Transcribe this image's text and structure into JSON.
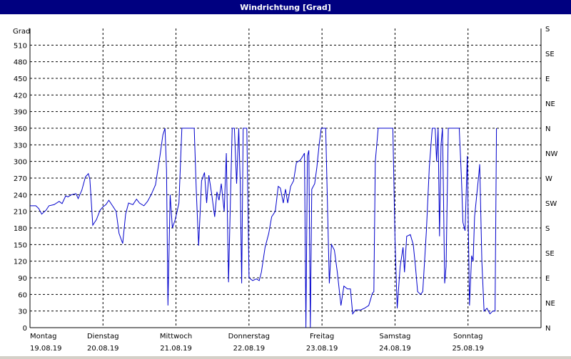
{
  "window": {
    "title": "Windrichtung [Grad]"
  },
  "chart_data": {
    "type": "line",
    "title": "Windrichtung [Grad]",
    "ylabel": "Grad",
    "ylim": [
      0,
      540
    ],
    "y_ticks": [
      0,
      30,
      60,
      90,
      120,
      150,
      180,
      210,
      240,
      270,
      300,
      330,
      360,
      390,
      420,
      450,
      480,
      510
    ],
    "right_axis_labels": [
      "N",
      "NE",
      "E",
      "SE",
      "S",
      "SW",
      "W",
      "NW",
      "N",
      "NE",
      "E",
      "SE",
      "S"
    ],
    "x_range_days": [
      0,
      7
    ],
    "x_ticks": [
      {
        "day": "Montag",
        "date": "19.08.19"
      },
      {
        "day": "Dienstag",
        "date": "20.08.19"
      },
      {
        "day": "Mittwoch",
        "date": "21.08.19"
      },
      {
        "day": "Donnerstag",
        "date": "22.08.19"
      },
      {
        "day": "Freitag",
        "date": "23.08.19"
      },
      {
        "day": "Samstag",
        "date": "24.08.19"
      },
      {
        "day": "Sonntag",
        "date": "25.08.19"
      }
    ],
    "grid": true,
    "color": "#0000cc",
    "series": [
      {
        "points": [
          [
            0.0,
            220
          ],
          [
            0.08,
            220
          ],
          [
            0.12,
            215
          ],
          [
            0.16,
            205
          ],
          [
            0.22,
            212
          ],
          [
            0.26,
            220
          ],
          [
            0.33,
            222
          ],
          [
            0.4,
            228
          ],
          [
            0.44,
            224
          ],
          [
            0.49,
            238
          ],
          [
            0.52,
            236
          ],
          [
            0.57,
            240
          ],
          [
            0.63,
            242
          ],
          [
            0.66,
            233
          ],
          [
            0.71,
            248
          ],
          [
            0.76,
            272
          ],
          [
            0.8,
            278
          ],
          [
            0.82,
            268
          ],
          [
            0.86,
            185
          ],
          [
            0.91,
            195
          ],
          [
            0.96,
            212
          ],
          [
            1.0,
            218
          ],
          [
            1.04,
            222
          ],
          [
            1.08,
            230
          ],
          [
            1.14,
            218
          ],
          [
            1.18,
            210
          ],
          [
            1.22,
            170
          ],
          [
            1.27,
            152
          ],
          [
            1.31,
            205
          ],
          [
            1.35,
            225
          ],
          [
            1.41,
            222
          ],
          [
            1.46,
            232
          ],
          [
            1.5,
            225
          ],
          [
            1.56,
            220
          ],
          [
            1.61,
            228
          ],
          [
            1.66,
            240
          ],
          [
            1.72,
            258
          ],
          [
            1.78,
            310
          ],
          [
            1.82,
            348
          ],
          [
            1.85,
            360
          ],
          [
            1.87,
            285
          ],
          [
            1.89,
            40
          ],
          [
            1.92,
            240
          ],
          [
            1.95,
            180
          ],
          [
            1.99,
            195
          ],
          [
            2.04,
            225
          ],
          [
            2.08,
            360
          ],
          [
            2.14,
            360
          ],
          [
            2.2,
            360
          ],
          [
            2.25,
            360
          ],
          [
            2.28,
            240
          ],
          [
            2.31,
            148
          ],
          [
            2.35,
            265
          ],
          [
            2.39,
            280
          ],
          [
            2.42,
            225
          ],
          [
            2.45,
            275
          ],
          [
            2.49,
            240
          ],
          [
            2.53,
            200
          ],
          [
            2.56,
            245
          ],
          [
            2.59,
            230
          ],
          [
            2.62,
            260
          ],
          [
            2.66,
            210
          ],
          [
            2.69,
            315
          ],
          [
            2.72,
            82
          ],
          [
            2.74,
            200
          ],
          [
            2.77,
            360
          ],
          [
            2.8,
            360
          ],
          [
            2.83,
            260
          ],
          [
            2.86,
            360
          ],
          [
            2.88,
            260
          ],
          [
            2.9,
            80
          ],
          [
            2.92,
            360
          ],
          [
            2.95,
            360
          ],
          [
            2.97,
            360
          ],
          [
            3.0,
            90
          ],
          [
            3.05,
            85
          ],
          [
            3.1,
            88
          ],
          [
            3.14,
            85
          ],
          [
            3.17,
            100
          ],
          [
            3.22,
            145
          ],
          [
            3.27,
            170
          ],
          [
            3.31,
            200
          ],
          [
            3.36,
            210
          ],
          [
            3.4,
            255
          ],
          [
            3.43,
            252
          ],
          [
            3.47,
            225
          ],
          [
            3.5,
            250
          ],
          [
            3.53,
            225
          ],
          [
            3.57,
            255
          ],
          [
            3.61,
            265
          ],
          [
            3.65,
            298
          ],
          [
            3.7,
            302
          ],
          [
            3.74,
            310
          ],
          [
            3.76,
            315
          ],
          [
            3.78,
            0
          ],
          [
            3.8,
            310
          ],
          [
            3.82,
            320
          ],
          [
            3.84,
            0
          ],
          [
            3.86,
            250
          ],
          [
            3.9,
            260
          ],
          [
            3.93,
            290
          ],
          [
            3.96,
            330
          ],
          [
            3.99,
            360
          ],
          [
            4.05,
            360
          ],
          [
            4.1,
            80
          ],
          [
            4.13,
            150
          ],
          [
            4.17,
            140
          ],
          [
            4.21,
            100
          ],
          [
            4.26,
            40
          ],
          [
            4.3,
            75
          ],
          [
            4.35,
            70
          ],
          [
            4.39,
            70
          ],
          [
            4.42,
            25
          ],
          [
            4.46,
            32
          ],
          [
            4.53,
            32
          ],
          [
            4.58,
            35
          ],
          [
            4.64,
            40
          ],
          [
            4.69,
            62
          ],
          [
            4.71,
            65
          ],
          [
            4.73,
            300
          ],
          [
            4.77,
            360
          ],
          [
            4.82,
            360
          ],
          [
            4.89,
            360
          ],
          [
            4.93,
            360
          ],
          [
            4.97,
            360
          ],
          [
            5.0,
            160
          ],
          [
            5.03,
            35
          ],
          [
            5.07,
            110
          ],
          [
            5.11,
            145
          ],
          [
            5.13,
            100
          ],
          [
            5.16,
            165
          ],
          [
            5.21,
            168
          ],
          [
            5.25,
            150
          ],
          [
            5.28,
            110
          ],
          [
            5.31,
            65
          ],
          [
            5.35,
            60
          ],
          [
            5.38,
            65
          ],
          [
            5.43,
            175
          ],
          [
            5.47,
            290
          ],
          [
            5.51,
            360
          ],
          [
            5.55,
            360
          ],
          [
            5.57,
            300
          ],
          [
            5.59,
            360
          ],
          [
            5.61,
            165
          ],
          [
            5.63,
            330
          ],
          [
            5.65,
            360
          ],
          [
            5.66,
            280
          ],
          [
            5.68,
            80
          ],
          [
            5.7,
            110
          ],
          [
            5.73,
            360
          ],
          [
            5.78,
            360
          ],
          [
            5.83,
            360
          ],
          [
            5.88,
            360
          ],
          [
            5.91,
            270
          ],
          [
            5.93,
            190
          ],
          [
            5.96,
            175
          ],
          [
            5.99,
            310
          ],
          [
            6.02,
            40
          ],
          [
            6.05,
            130
          ],
          [
            6.07,
            120
          ],
          [
            6.09,
            200
          ],
          [
            6.12,
            240
          ],
          [
            6.15,
            280
          ],
          [
            6.16,
            295
          ],
          [
            6.19,
            120
          ],
          [
            6.22,
            30
          ],
          [
            6.26,
            35
          ],
          [
            6.3,
            25
          ],
          [
            6.34,
            30
          ],
          [
            6.37,
            30
          ],
          [
            6.39,
            360
          ]
        ]
      }
    ]
  }
}
